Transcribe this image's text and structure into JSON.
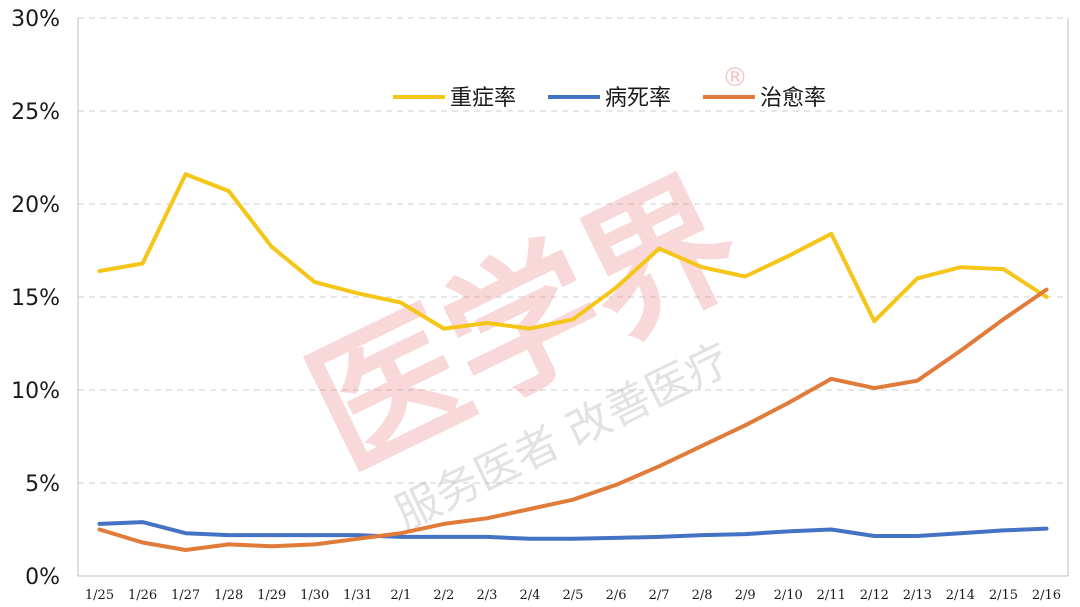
{
  "chart_data": {
    "type": "line",
    "categories": [
      "1/25",
      "1/26",
      "1/27",
      "1/28",
      "1/29",
      "1/30",
      "1/31",
      "2/1",
      "2/2",
      "2/3",
      "2/4",
      "2/5",
      "2/6",
      "2/7",
      "2/8",
      "2/9",
      "2/10",
      "2/11",
      "2/12",
      "2/13",
      "2/14",
      "2/15",
      "2/16"
    ],
    "y_ticks": [
      "0%",
      "5%",
      "10%",
      "15%",
      "20%",
      "25%",
      "30%"
    ],
    "ylim": [
      0,
      30
    ],
    "grid": "horizontal dashed",
    "legend_position": "top-center",
    "series": [
      {
        "name": "重症率",
        "color": "#f5c518",
        "values": [
          16.4,
          16.8,
          21.6,
          20.7,
          17.7,
          15.8,
          15.2,
          14.7,
          13.3,
          13.6,
          13.3,
          13.8,
          15.5,
          17.6,
          16.6,
          16.1,
          17.2,
          18.4,
          13.7,
          16.0,
          16.6,
          16.5,
          15.0
        ]
      },
      {
        "name": "病死率",
        "color": "#4472c4",
        "values": [
          2.8,
          2.9,
          2.3,
          2.2,
          2.2,
          2.2,
          2.2,
          2.1,
          2.1,
          2.1,
          2.0,
          2.0,
          2.05,
          2.1,
          2.2,
          2.25,
          2.4,
          2.5,
          2.15,
          2.15,
          2.3,
          2.45,
          2.55
        ]
      },
      {
        "name": "治愈率",
        "color": "#e07b39",
        "values": [
          2.5,
          1.8,
          1.4,
          1.7,
          1.6,
          1.7,
          2.0,
          2.3,
          2.8,
          3.1,
          3.6,
          4.1,
          4.9,
          5.9,
          7.0,
          8.1,
          9.3,
          10.6,
          10.1,
          10.5,
          12.1,
          13.8,
          15.4
        ]
      }
    ]
  },
  "watermark": {
    "main": "医学界",
    "sub": "服务医者 改善医疗",
    "reg": "®"
  }
}
